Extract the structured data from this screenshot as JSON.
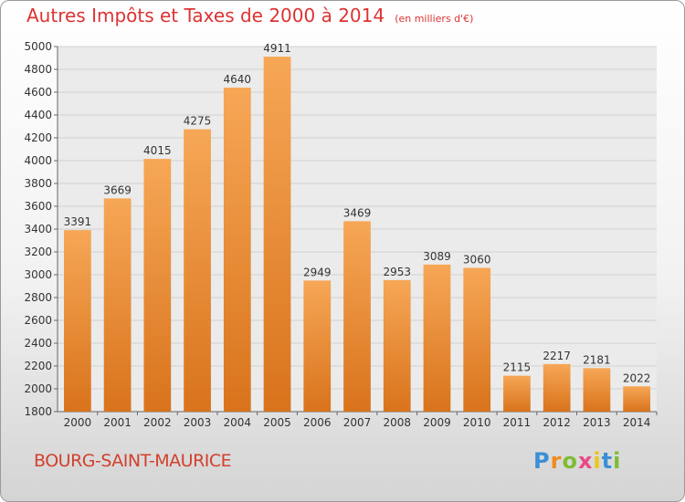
{
  "chart_data": {
    "type": "bar",
    "title": "Autres Impôts et Taxes de 2000 à 2014",
    "subtitle": "(en milliers d'€)",
    "categories": [
      "2000",
      "2001",
      "2002",
      "2003",
      "2004",
      "2005",
      "2006",
      "2007",
      "2008",
      "2009",
      "2010",
      "2011",
      "2012",
      "2013",
      "2014"
    ],
    "values": [
      3391,
      3669,
      4015,
      4275,
      4640,
      4911,
      2949,
      3469,
      2953,
      3089,
      3060,
      2115,
      2217,
      2181,
      2022
    ],
    "ylim": [
      1800,
      5000
    ],
    "yticks": [
      1800,
      2000,
      2200,
      2400,
      2600,
      2800,
      3000,
      3200,
      3400,
      3600,
      3800,
      4000,
      4200,
      4400,
      4600,
      4800,
      5000
    ],
    "grid": true,
    "bar_color_top": "#f6a756",
    "bar_color_bottom": "#d9731c"
  },
  "location": "BOURG-SAINT-MAURICE",
  "brand": {
    "name": "Proxiti",
    "letters": [
      "P",
      "r",
      "o",
      "x",
      "i",
      "t",
      "i"
    ],
    "colors": [
      "#3a8fd6",
      "#f08a1c",
      "#7cbd33",
      "#e94a86",
      "#f0c419",
      "#3a8fd6",
      "#7cbd33"
    ]
  }
}
